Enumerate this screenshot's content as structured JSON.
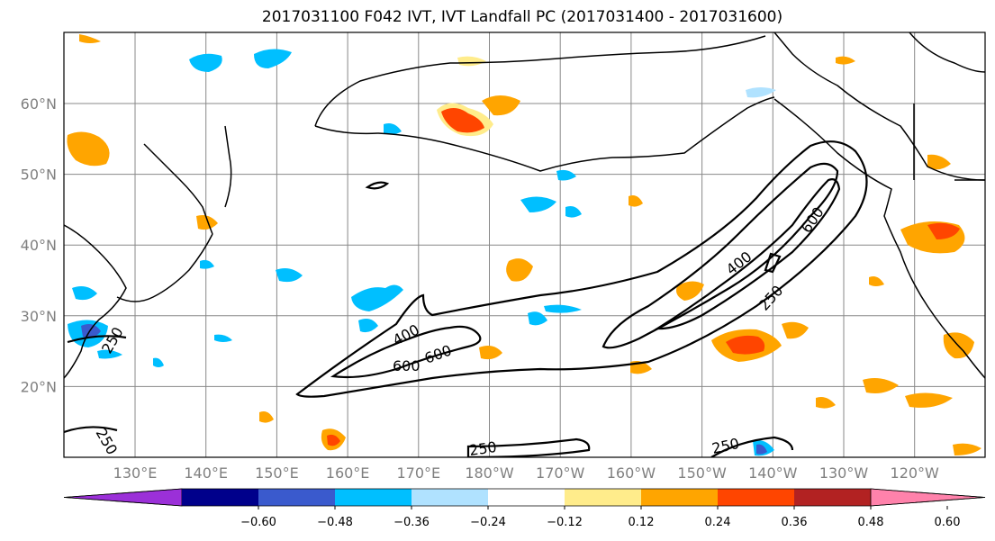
{
  "title": "2017031100 F042 IVT, IVT Landfall PC (2017031400 - 2017031600)",
  "x_ticks": [
    "130°E",
    "140°E",
    "150°E",
    "160°E",
    "170°E",
    "180°W",
    "170°W",
    "160°W",
    "150°W",
    "140°W",
    "130°W",
    "120°W"
  ],
  "y_ticks": [
    "60°N",
    "50°N",
    "40°N",
    "30°N",
    "20°N"
  ],
  "colorbar": {
    "colors": [
      "#9b30d8",
      "#00008b",
      "#3a5acd",
      "#00bfff",
      "#b0e2ff",
      "#ffffff",
      "#ffec8b",
      "#ffa500",
      "#ff4500",
      "#b22222",
      "#ff82ab"
    ],
    "labels": [
      "-0.60",
      "-0.48",
      "-0.36",
      "-0.24",
      "-0.12",
      "0.12",
      "0.24",
      "0.36",
      "0.48",
      "0.60"
    ]
  },
  "contour_labels": [
    {
      "text": "400"
    },
    {
      "text": "600"
    },
    {
      "text": "600"
    },
    {
      "text": "400"
    },
    {
      "text": "600"
    },
    {
      "text": "250"
    },
    {
      "text": "250"
    },
    {
      "text": "250"
    },
    {
      "text": "250"
    },
    {
      "text": "250"
    }
  ]
}
